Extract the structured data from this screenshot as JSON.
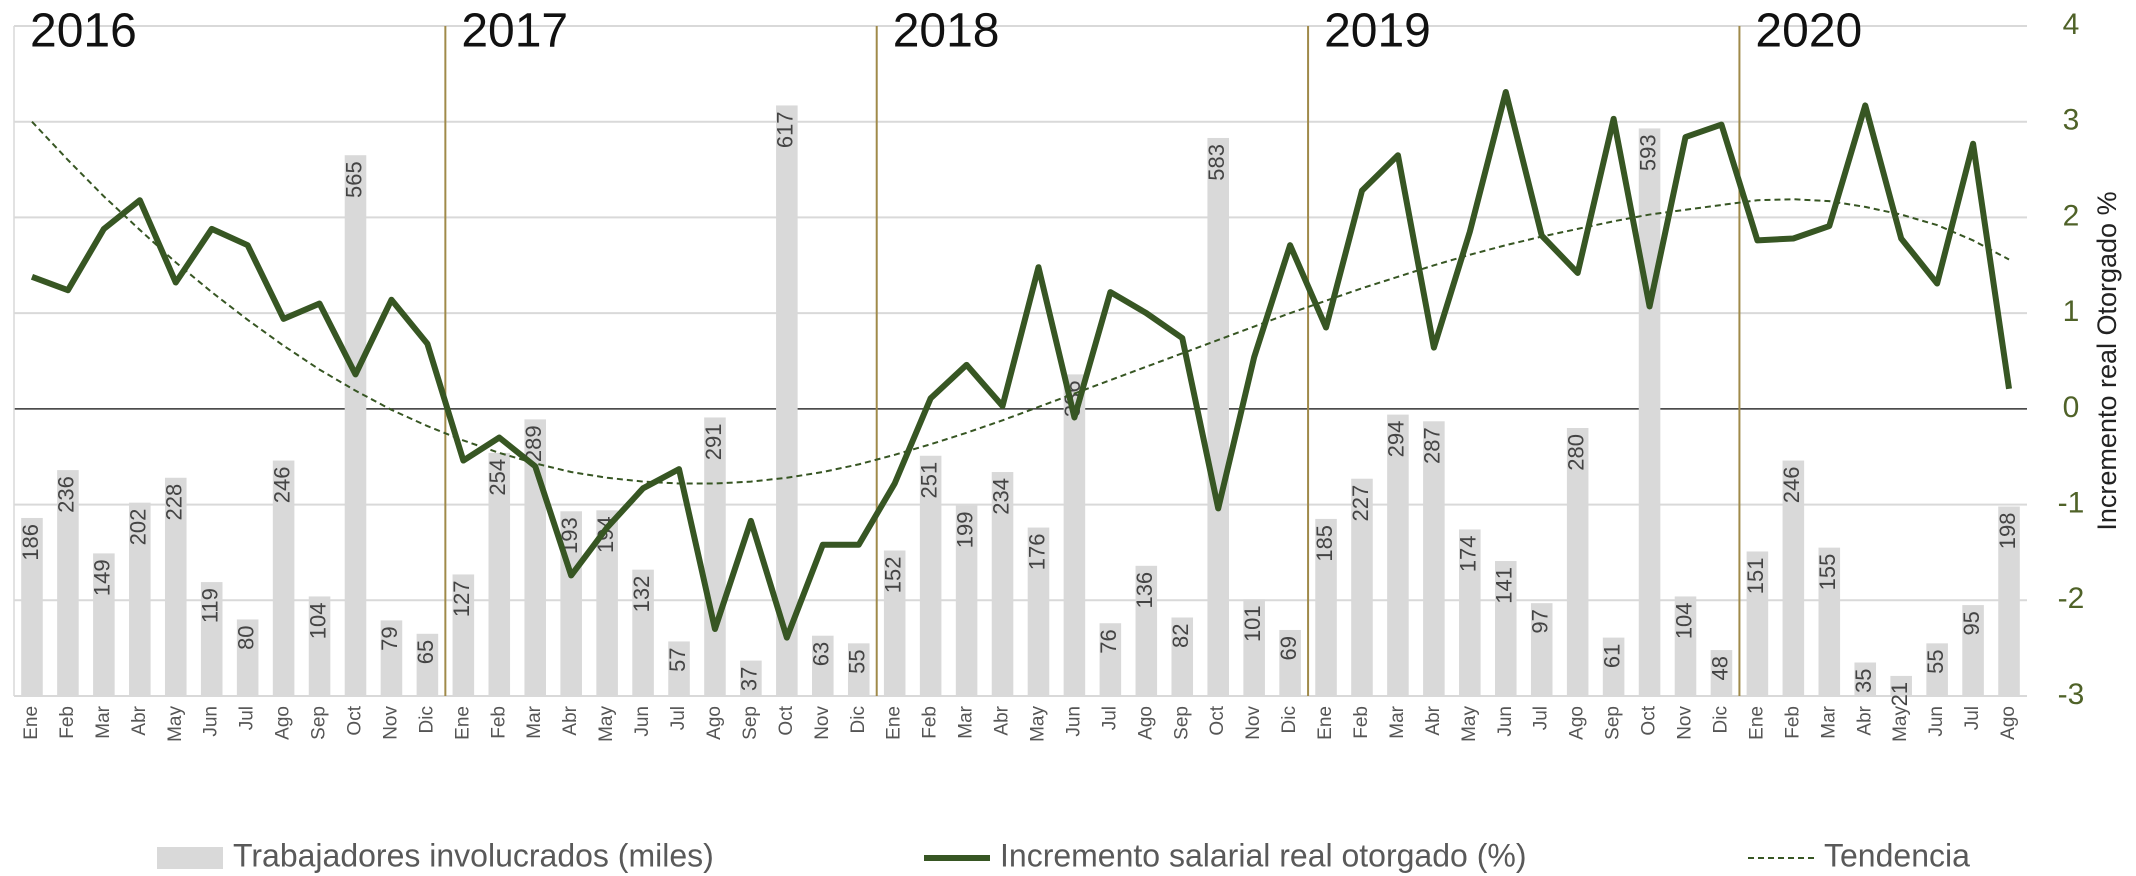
{
  "chart_data": {
    "type": "combo",
    "categories": [
      "Ene",
      "Feb",
      "Mar",
      "Abr",
      "May",
      "Jun",
      "Jul",
      "Ago",
      "Sep",
      "Oct",
      "Nov",
      "Dic",
      "Ene",
      "Feb",
      "Mar",
      "Abr",
      "May",
      "Jun",
      "Jul",
      "Ago",
      "Sep",
      "Oct",
      "Nov",
      "Dic",
      "Ene",
      "Feb",
      "Mar",
      "Abr",
      "May",
      "Jun",
      "Jul",
      "Ago",
      "Sep",
      "Oct",
      "Nov",
      "Dic",
      "Ene",
      "Feb",
      "Mar",
      "Abr",
      "May",
      "Jun",
      "Jul",
      "Ago",
      "Sep",
      "Oct",
      "Nov",
      "Dic",
      "Ene",
      "Feb",
      "Mar",
      "Abr",
      "May",
      "Jun",
      "Jul",
      "Ago"
    ],
    "year_labels": [
      "2016",
      "2017",
      "2018",
      "2019",
      "2020"
    ],
    "ylim": [
      0,
      700
    ],
    "y2lim": [
      -3,
      4
    ],
    "y2ticks": [
      -3,
      -2,
      -1,
      0,
      1,
      2,
      3,
      4
    ],
    "y2label": "Incremento  real Otorgado %",
    "grid": true,
    "series": [
      {
        "name": "Trabajadores involucrados (miles)",
        "type": "bar",
        "axis": "y",
        "color": "#d9d9d9",
        "values": [
          186,
          236,
          149,
          202,
          228,
          119,
          80,
          246,
          104,
          565,
          79,
          65,
          127,
          254,
          289,
          193,
          194,
          132,
          57,
          291,
          37,
          617,
          63,
          55,
          152,
          251,
          199,
          234,
          176,
          336,
          76,
          136,
          82,
          583,
          101,
          69,
          185,
          227,
          294,
          287,
          174,
          141,
          97,
          280,
          61,
          593,
          104,
          48,
          151,
          246,
          155,
          35,
          21,
          55,
          95,
          198
        ]
      },
      {
        "name": "Incremento salarial real otorgado (%)",
        "type": "line",
        "axis": "y2",
        "color": "#375623",
        "style": "solid",
        "values": [
          1.38,
          1.24,
          1.88,
          2.18,
          1.32,
          1.88,
          1.71,
          0.94,
          1.1,
          0.36,
          1.14,
          0.68,
          -0.54,
          -0.3,
          -0.6,
          -1.74,
          -1.24,
          -0.83,
          -0.63,
          -2.3,
          -1.17,
          -2.39,
          -1.42,
          -1.42,
          -0.78,
          0.11,
          0.46,
          0.03,
          1.48,
          -0.09,
          1.22,
          1.0,
          0.74,
          -1.04,
          0.54,
          1.71,
          0.85,
          2.28,
          2.65,
          0.64,
          1.85,
          3.31,
          1.81,
          1.42,
          3.03,
          1.07,
          2.84,
          2.97,
          1.76,
          1.78,
          1.91,
          3.17,
          1.78,
          1.31,
          2.77,
          0.21
        ]
      },
      {
        "name": "Tendencia",
        "type": "line",
        "axis": "y2",
        "color": "#375623",
        "style": "dashed",
        "values": [
          3.0,
          2.6,
          2.22,
          1.87,
          1.53,
          1.22,
          0.93,
          0.66,
          0.41,
          0.19,
          -0.01,
          -0.18,
          -0.33,
          -0.46,
          -0.57,
          -0.66,
          -0.72,
          -0.76,
          -0.78,
          -0.78,
          -0.76,
          -0.72,
          -0.66,
          -0.58,
          -0.48,
          -0.37,
          -0.25,
          -0.12,
          0.02,
          0.16,
          0.3,
          0.44,
          0.58,
          0.72,
          0.86,
          1.0,
          1.13,
          1.26,
          1.38,
          1.5,
          1.61,
          1.71,
          1.8,
          1.88,
          1.96,
          2.03,
          2.08,
          2.13,
          2.18,
          2.19,
          2.17,
          2.11,
          2.03,
          1.92,
          1.76,
          1.56
        ]
      }
    ]
  }
}
